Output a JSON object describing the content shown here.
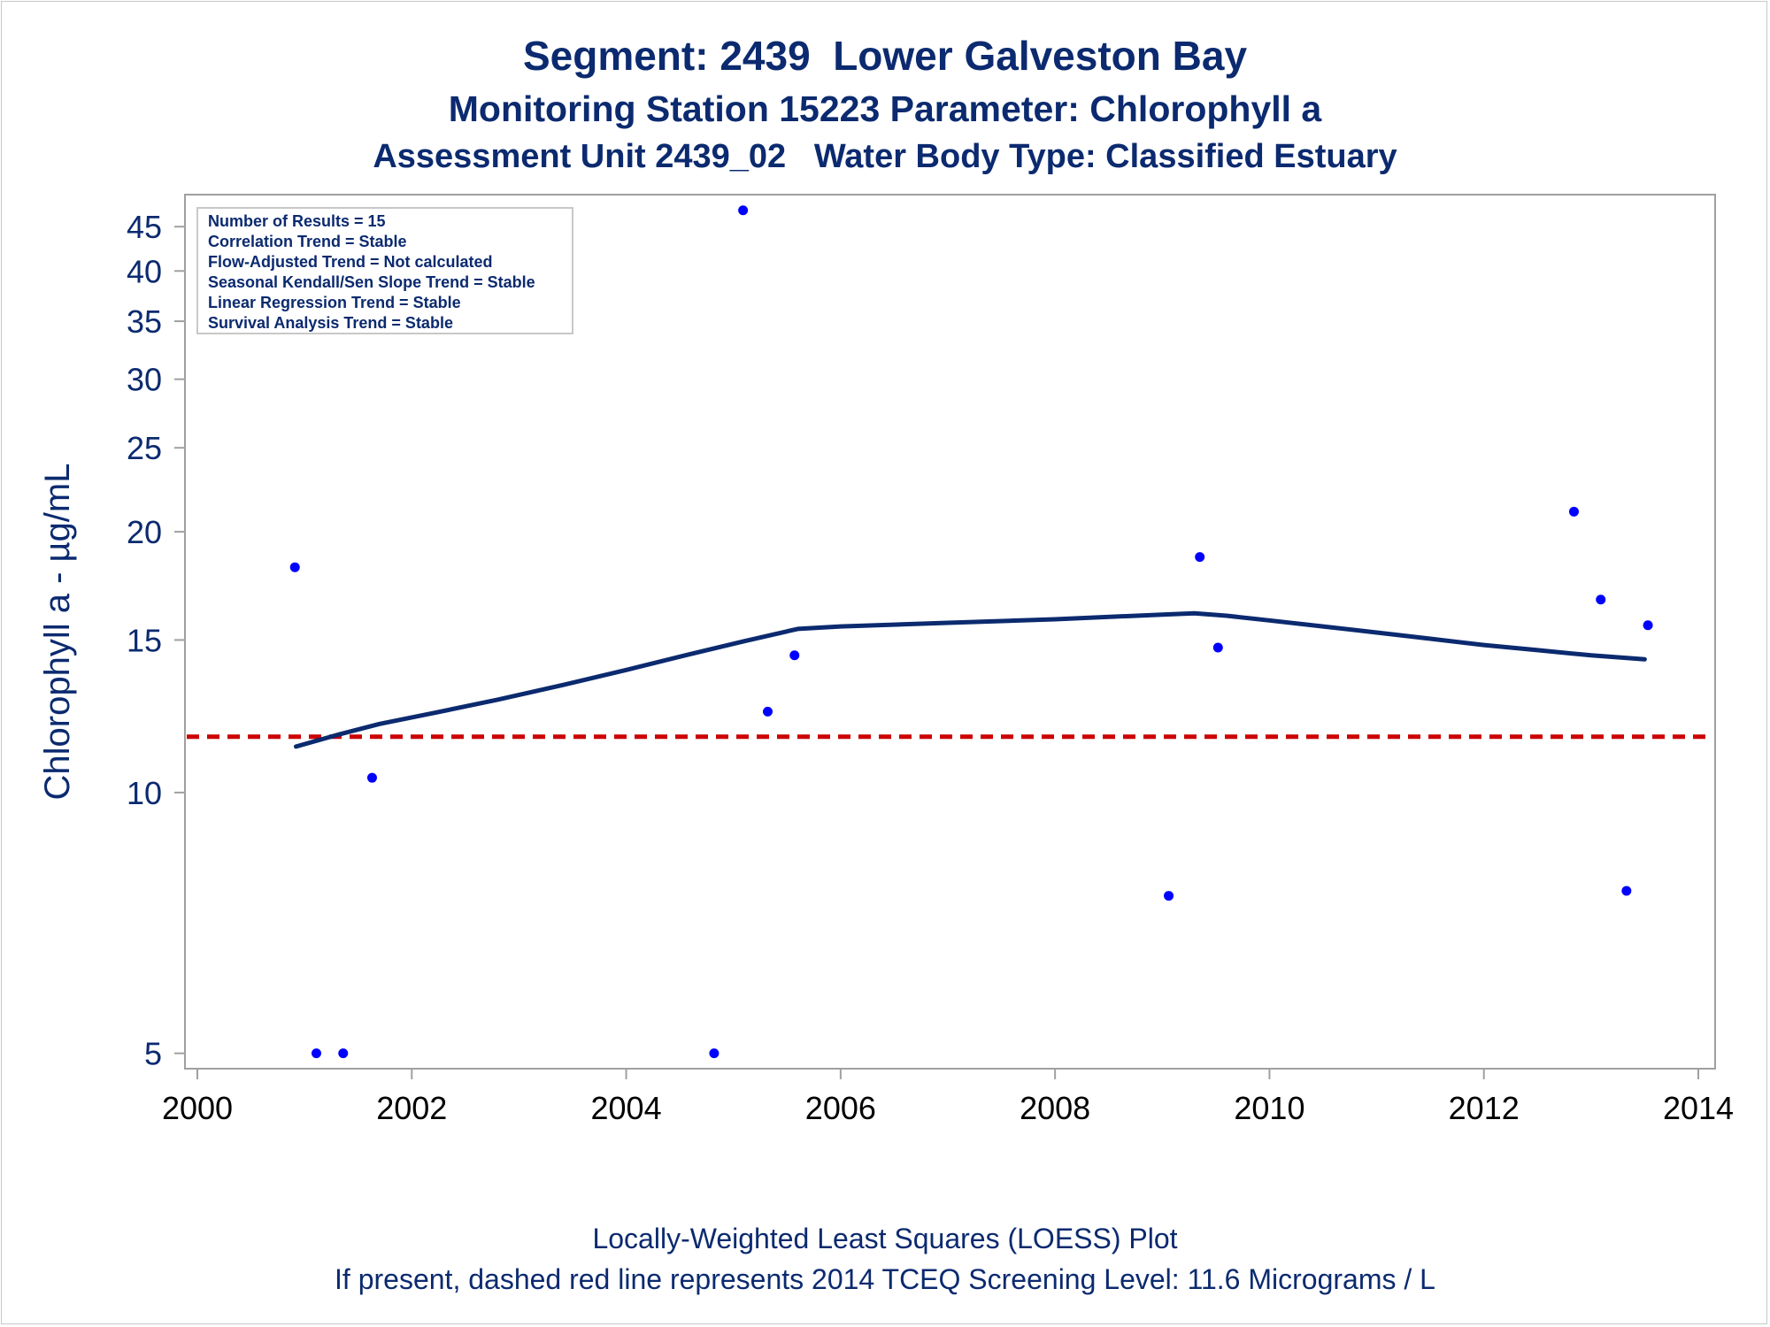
{
  "titles": {
    "line1": "Segment: 2439  Lower Galveston Bay",
    "line2": "Monitoring Station 15223 Parameter: Chlorophyll a",
    "line3": "Assessment Unit 2439_02   Water Body Type: Classified Estuary"
  },
  "footnotes": {
    "line1": "Locally-Weighted Least Squares (LOESS) Plot",
    "line2": "If present, dashed red line represents 2014 TCEQ Screening Level: 11.6 Micrograms / L"
  },
  "colors": {
    "text": "#0b2a6f",
    "points": "#0000ff",
    "loess": "#0b2a6f",
    "screening_line": "#cc0000",
    "frame": "#a0a0a0"
  },
  "chart_data": {
    "type": "scatter",
    "ylabel": "Chlorophyll a -  µg/mL",
    "xlabel": "",
    "y_scale": "log",
    "xlim": [
      2000,
      2014
    ],
    "ylim": [
      4.8,
      49
    ],
    "x_ticks": [
      2000,
      2002,
      2004,
      2006,
      2008,
      2010,
      2012,
      2014
    ],
    "y_ticks": [
      5,
      10,
      15,
      20,
      25,
      30,
      35,
      40,
      45
    ],
    "grid": false,
    "legend_box": [
      "Number of Results = 15",
      "Correlation Trend = Stable",
      "Flow-Adjusted Trend = Not calculated",
      "Seasonal Kendall/Sen Slope Trend = Stable",
      "Linear Regression Trend = Stable",
      "Survival Analysis Trend = Stable"
    ],
    "legend_placement": "top-left",
    "series": [
      {
        "kind": "points",
        "x": [
          2000.91,
          2001.11,
          2001.36,
          2001.63,
          2004.82,
          2005.09,
          2005.32,
          2005.57,
          2009.06,
          2009.35,
          2009.52,
          2012.84,
          2013.09,
          2013.33,
          2013.53
        ],
        "y": [
          18.2,
          5.0,
          5.0,
          10.4,
          5.0,
          47.0,
          12.4,
          14.4,
          7.6,
          18.7,
          14.7,
          21.1,
          16.7,
          7.7,
          15.6
        ]
      },
      {
        "kind": "loess",
        "x": [
          2000.92,
          2001.3,
          2001.7,
          2002.2,
          2002.8,
          2003.4,
          2004.0,
          2004.6,
          2005.1,
          2005.6,
          2006.0,
          2007.0,
          2008.0,
          2009.0,
          2009.3,
          2009.6,
          2010.0,
          2010.5,
          2011.0,
          2011.5,
          2012.0,
          2012.5,
          2013.0,
          2013.5
        ],
        "y": [
          11.3,
          11.65,
          12.0,
          12.35,
          12.8,
          13.3,
          13.85,
          14.45,
          14.95,
          15.45,
          15.55,
          15.7,
          15.85,
          16.05,
          16.1,
          16.0,
          15.8,
          15.55,
          15.3,
          15.05,
          14.8,
          14.6,
          14.4,
          14.25
        ]
      }
    ],
    "reference_line": {
      "y": 11.6,
      "style": "dashed"
    }
  }
}
